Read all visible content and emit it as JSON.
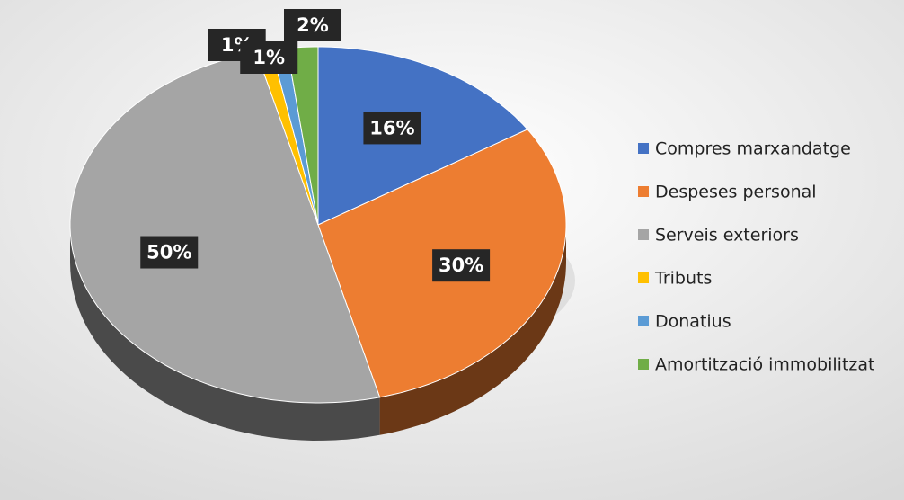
{
  "chart_data": {
    "type": "pie",
    "categories": [
      "Compres marxandatge",
      "Despeses personal",
      "Serveis exteriors",
      "Tributs",
      "Donatius",
      "Amortització immobilitzat"
    ],
    "values": [
      16,
      30,
      50,
      1,
      1,
      2
    ],
    "value_labels": [
      "16%",
      "30%",
      "50%",
      "1%",
      "1%",
      "2%"
    ],
    "colors": [
      "#4472c4",
      "#ed7d31",
      "#a5a5a5",
      "#ffc000",
      "#5b9bd5",
      "#70ad47"
    ],
    "legend": "right"
  }
}
